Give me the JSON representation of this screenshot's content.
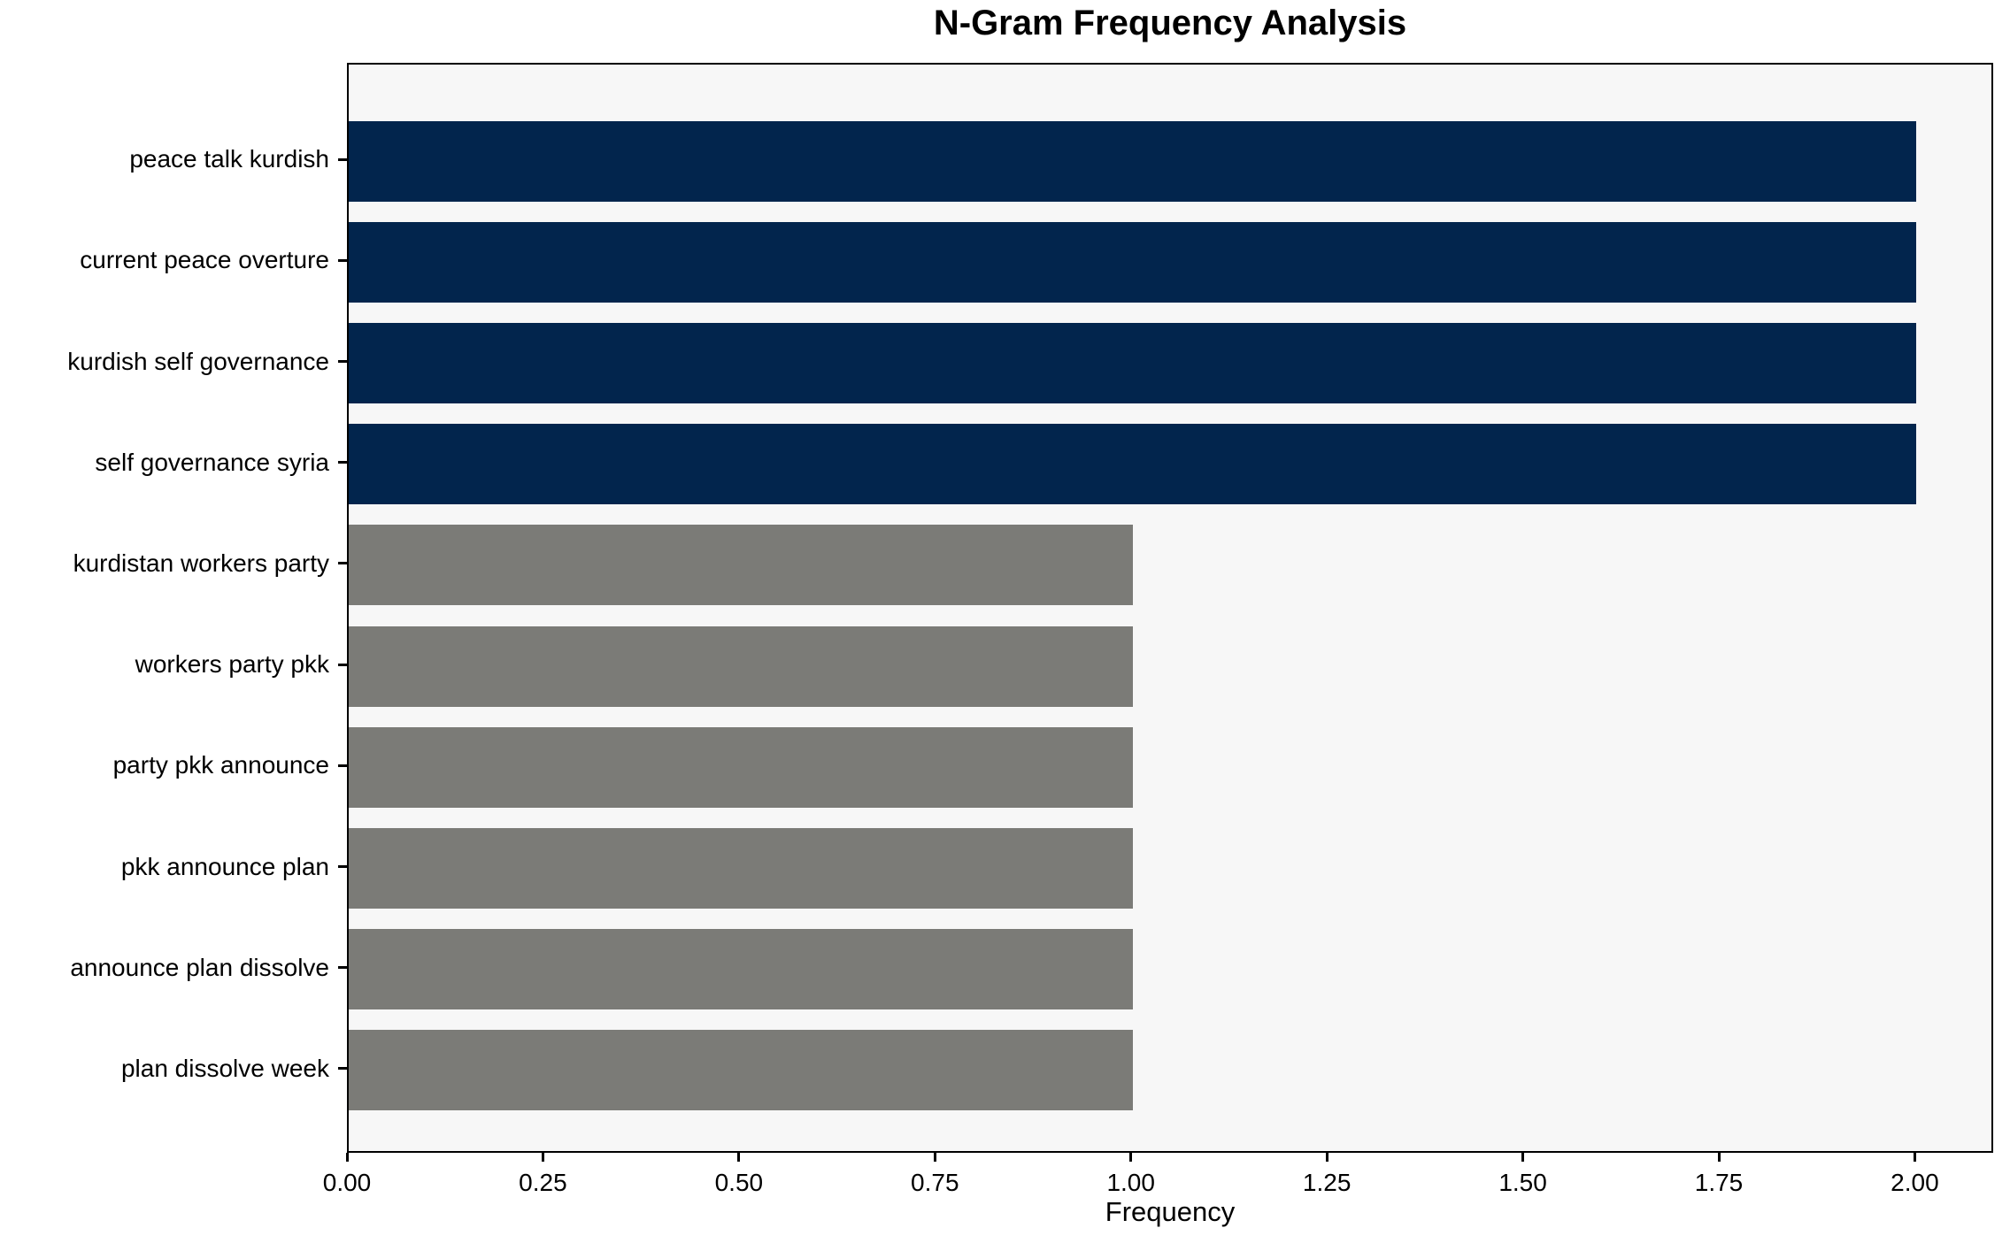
{
  "chart_data": {
    "type": "bar",
    "orientation": "horizontal",
    "title": "N-Gram Frequency Analysis",
    "xlabel": "Frequency",
    "ylabel": "",
    "categories": [
      "peace talk kurdish",
      "current peace overture",
      "kurdish self governance",
      "self governance syria",
      "kurdistan workers party",
      "workers party pkk",
      "party pkk announce",
      "pkk announce plan",
      "announce plan dissolve",
      "plan dissolve week"
    ],
    "values": [
      2,
      2,
      2,
      2,
      1,
      1,
      1,
      1,
      1,
      1
    ],
    "bar_colors": [
      "#02254d",
      "#02254d",
      "#02254d",
      "#02254d",
      "#7b7b77",
      "#7b7b77",
      "#7b7b77",
      "#7b7b77",
      "#7b7b77",
      "#7b7b77"
    ],
    "xlim": [
      0,
      2.1
    ],
    "xticks": [
      {
        "value": 0.0,
        "label": "0.00"
      },
      {
        "value": 0.25,
        "label": "0.25"
      },
      {
        "value": 0.5,
        "label": "0.50"
      },
      {
        "value": 0.75,
        "label": "0.75"
      },
      {
        "value": 1.0,
        "label": "1.00"
      },
      {
        "value": 1.25,
        "label": "1.25"
      },
      {
        "value": 1.5,
        "label": "1.50"
      },
      {
        "value": 1.75,
        "label": "1.75"
      },
      {
        "value": 2.0,
        "label": "2.00"
      }
    ],
    "grid": false,
    "legend": "none",
    "colors": {
      "high_frequency_bar": "#02254d",
      "low_frequency_bar": "#7b7b77",
      "plot_background": "#f7f7f7",
      "figure_background": "#ffffff",
      "axis": "#000000",
      "text": "#000000"
    }
  }
}
